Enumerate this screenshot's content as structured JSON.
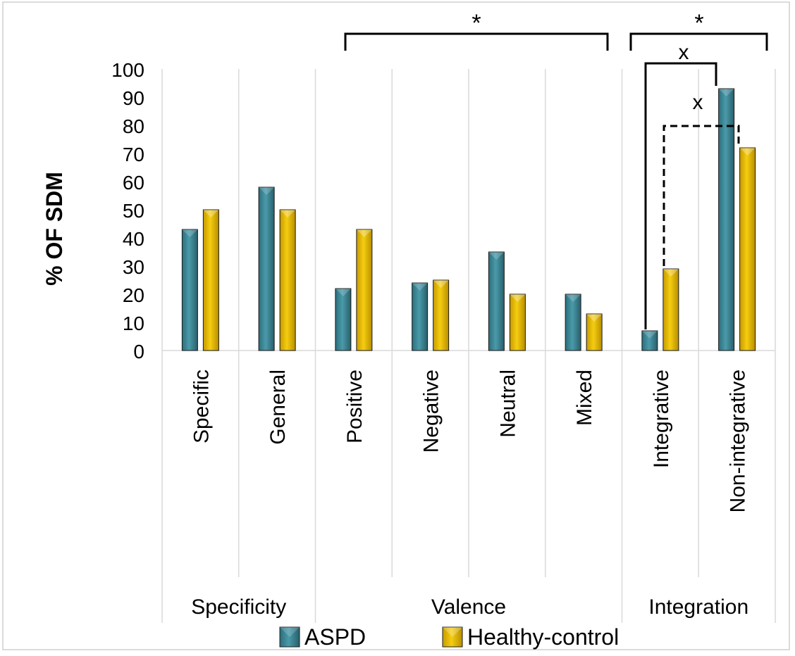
{
  "chart_data": {
    "type": "bar",
    "ylabel": "% OF SDM",
    "ylim": [
      0,
      100
    ],
    "yticks": [
      0,
      10,
      20,
      30,
      40,
      50,
      60,
      70,
      80,
      90,
      100
    ],
    "grid": "vertical separators",
    "legend_position": "bottom",
    "categories": [
      "Specific",
      "General",
      "Positive",
      "Negative",
      "Neutral",
      "Mixed",
      "Integrative",
      "Non-integrative"
    ],
    "groups": [
      {
        "label": "Specificity",
        "categories": [
          "Specific",
          "General"
        ]
      },
      {
        "label": "Valence",
        "categories": [
          "Positive",
          "Negative",
          "Neutral",
          "Mixed"
        ]
      },
      {
        "label": "Integration",
        "categories": [
          "Integrative",
          "Non-integrative"
        ]
      }
    ],
    "series": [
      {
        "name": "ASPD",
        "color": "#3E8A9A",
        "values": [
          43,
          58,
          22,
          24,
          35,
          20,
          7,
          93
        ]
      },
      {
        "name": "Healthy-control",
        "color": "#E8B800",
        "values": [
          50,
          50,
          43,
          25,
          20,
          13,
          29,
          72
        ]
      }
    ],
    "annotations": [
      {
        "label": "*",
        "spans": "Valence"
      },
      {
        "label": "*",
        "spans": "Integration"
      },
      {
        "label": "x",
        "compares": "ASPD Integrative vs Non-integrative"
      },
      {
        "label": "x",
        "compares": "Healthy-control Integrative vs Non-integrative"
      }
    ]
  }
}
